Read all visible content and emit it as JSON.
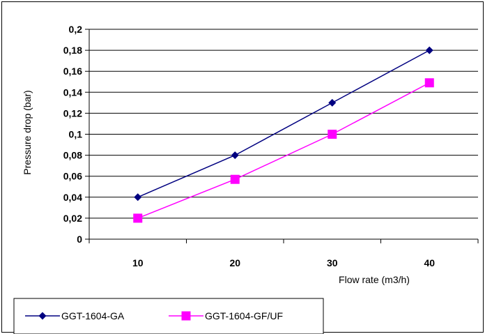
{
  "chart_data": {
    "type": "line",
    "xlabel": "Flow rate (m3/h)",
    "ylabel": "Pressure drop (bar)",
    "categories": [
      "10",
      "20",
      "30",
      "40"
    ],
    "ylim": [
      0,
      0.2
    ],
    "y_ticks": [
      "0",
      "0,02",
      "0,04",
      "0,06",
      "0,08",
      "0,1",
      "0,12",
      "0,14",
      "0,16",
      "0,18",
      "0,2"
    ],
    "grid": "horizontal",
    "legend_position": "bottom-left",
    "series": [
      {
        "name": "GGT-1604-GA",
        "color": "#000080",
        "marker": "diamond",
        "values": [
          0.04,
          0.08,
          0.13,
          0.18
        ]
      },
      {
        "name": "GGT-1604-GF/UF",
        "color": "#ff00ff",
        "marker": "square",
        "values": [
          0.02,
          0.057,
          0.1,
          0.149
        ]
      }
    ]
  }
}
